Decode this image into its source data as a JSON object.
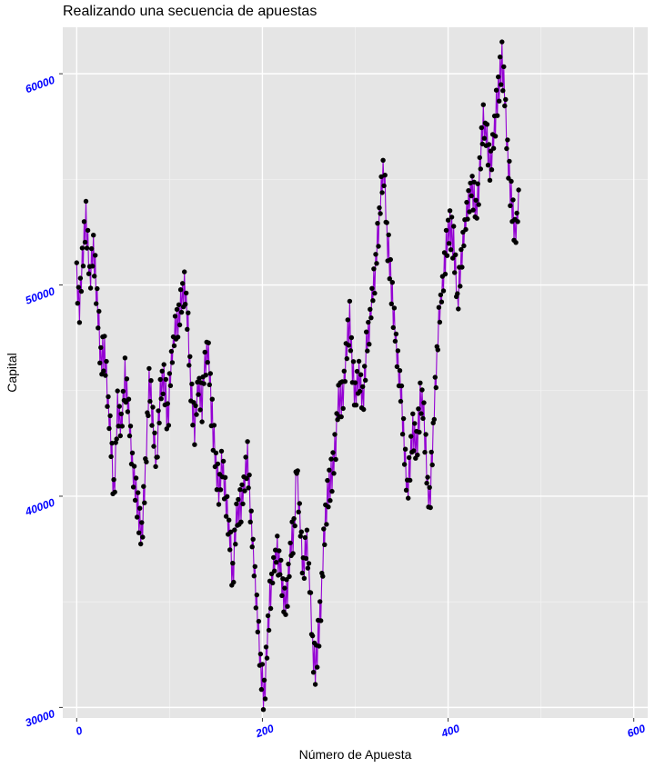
{
  "chart_data": {
    "type": "line",
    "title": "Realizando una secuencia de apuestas",
    "xlabel": "Número de Apuesta",
    "ylabel": "Capital",
    "xlim": [
      -15,
      615
    ],
    "ylim": [
      29500,
      62200
    ],
    "x_ticks": [
      0,
      200,
      400,
      600
    ],
    "x_tick_labels": [
      "0",
      "200",
      "400",
      "600"
    ],
    "y_ticks": [
      30000,
      40000,
      50000,
      60000
    ],
    "y_tick_labels": [
      "30000",
      "40000",
      "50000",
      "60000"
    ],
    "grid": true,
    "legend": "none",
    "line_color": "#9400d3",
    "point_color": "#000000",
    "panel_color": "#e5e5e5",
    "tick_label_color": "#0000ff",
    "anchors": [
      [
        0,
        50700
      ],
      [
        3,
        48700
      ],
      [
        6,
        51200
      ],
      [
        10,
        53200
      ],
      [
        14,
        50300
      ],
      [
        18,
        51600
      ],
      [
        22,
        49400
      ],
      [
        26,
        46300
      ],
      [
        30,
        47000
      ],
      [
        33,
        44800
      ],
      [
        36,
        43200
      ],
      [
        40,
        40000
      ],
      [
        44,
        44300
      ],
      [
        48,
        43000
      ],
      [
        52,
        45800
      ],
      [
        56,
        44000
      ],
      [
        60,
        41500
      ],
      [
        63,
        40300
      ],
      [
        66,
        39300
      ],
      [
        70,
        38100
      ],
      [
        74,
        41000
      ],
      [
        78,
        45500
      ],
      [
        82,
        43800
      ],
      [
        86,
        41400
      ],
      [
        90,
        44800
      ],
      [
        94,
        45800
      ],
      [
        98,
        43500
      ],
      [
        102,
        46500
      ],
      [
        106,
        47800
      ],
      [
        110,
        48300
      ],
      [
        114,
        49500
      ],
      [
        116,
        50200
      ],
      [
        119,
        48800
      ],
      [
        123,
        45400
      ],
      [
        127,
        43200
      ],
      [
        131,
        45500
      ],
      [
        135,
        44300
      ],
      [
        138,
        46400
      ],
      [
        141,
        47100
      ],
      [
        145,
        44200
      ],
      [
        149,
        42000
      ],
      [
        153,
        40200
      ],
      [
        157,
        41600
      ],
      [
        161,
        39600
      ],
      [
        165,
        38000
      ],
      [
        168,
        36100
      ],
      [
        172,
        38900
      ],
      [
        176,
        39500
      ],
      [
        180,
        40300
      ],
      [
        184,
        41900
      ],
      [
        188,
        38500
      ],
      [
        191,
        36900
      ],
      [
        194,
        34800
      ],
      [
        197,
        32600
      ],
      [
        200,
        31200
      ],
      [
        202,
        30400
      ],
      [
        205,
        32700
      ],
      [
        208,
        35200
      ],
      [
        212,
        36700
      ],
      [
        216,
        37400
      ],
      [
        220,
        36500
      ],
      [
        224,
        34700
      ],
      [
        227,
        35600
      ],
      [
        230,
        37400
      ],
      [
        234,
        38500
      ],
      [
        237,
        41500
      ],
      [
        240,
        39200
      ],
      [
        244,
        36400
      ],
      [
        248,
        37800
      ],
      [
        251,
        35800
      ],
      [
        254,
        32900
      ],
      [
        257,
        31900
      ],
      [
        260,
        33200
      ],
      [
        263,
        34800
      ],
      [
        266,
        37800
      ],
      [
        270,
        40000
      ],
      [
        274,
        40900
      ],
      [
        278,
        42000
      ],
      [
        282,
        44700
      ],
      [
        286,
        44500
      ],
      [
        290,
        46400
      ],
      [
        294,
        48500
      ],
      [
        297,
        46000
      ],
      [
        300,
        44500
      ],
      [
        304,
        45800
      ],
      [
        308,
        44300
      ],
      [
        312,
        46900
      ],
      [
        316,
        48500
      ],
      [
        320,
        50000
      ],
      [
        324,
        52000
      ],
      [
        328,
        54400
      ],
      [
        331,
        55400
      ],
      [
        334,
        52400
      ],
      [
        338,
        50500
      ],
      [
        342,
        48200
      ],
      [
        346,
        46400
      ],
      [
        350,
        44500
      ],
      [
        353,
        42000
      ],
      [
        356,
        40000
      ],
      [
        359,
        41500
      ],
      [
        362,
        43000
      ],
      [
        366,
        42200
      ],
      [
        370,
        44500
      ],
      [
        374,
        44000
      ],
      [
        377,
        41000
      ],
      [
        380,
        39500
      ],
      [
        383,
        42000
      ],
      [
        386,
        45000
      ],
      [
        390,
        48300
      ],
      [
        394,
        50000
      ],
      [
        398,
        51800
      ],
      [
        402,
        52800
      ],
      [
        406,
        52000
      ],
      [
        410,
        49200
      ],
      [
        414,
        51000
      ],
      [
        418,
        52700
      ],
      [
        422,
        54000
      ],
      [
        426,
        54800
      ],
      [
        430,
        53200
      ],
      [
        434,
        55200
      ],
      [
        438,
        57800
      ],
      [
        442,
        56800
      ],
      [
        446,
        55500
      ],
      [
        450,
        57500
      ],
      [
        454,
        59200
      ],
      [
        458,
        60700
      ],
      [
        461,
        59000
      ],
      [
        464,
        56000
      ],
      [
        467,
        54500
      ],
      [
        470,
        53200
      ],
      [
        473,
        52500
      ],
      [
        476,
        53800
      ]
    ]
  }
}
